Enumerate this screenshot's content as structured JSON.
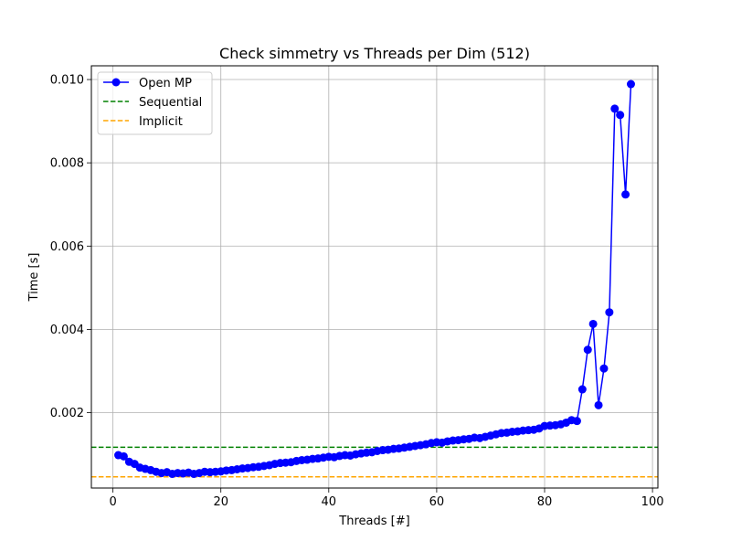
{
  "chart_data": {
    "type": "line",
    "title": "Check simmetry vs Threads per Dim (512)",
    "xlabel": "Threads [#]",
    "ylabel": "Time [s]",
    "xlim": [
      -4,
      101
    ],
    "ylim": [
      0.00019,
      0.01033
    ],
    "xticks": [
      0,
      20,
      40,
      60,
      80,
      100
    ],
    "xtick_labels": [
      "0",
      "20",
      "40",
      "60",
      "80",
      "100"
    ],
    "yticks": [
      0.002,
      0.004,
      0.006,
      0.008,
      0.01
    ],
    "ytick_labels": [
      "0.002",
      "0.004",
      "0.006",
      "0.008",
      "0.010"
    ],
    "grid": true,
    "legend_position": "top-left",
    "series": [
      {
        "name": "Open MP",
        "style": "marker-line",
        "color": "#0000ff",
        "x": [
          1,
          2,
          3,
          4,
          5,
          6,
          7,
          8,
          9,
          10,
          11,
          12,
          13,
          14,
          15,
          16,
          17,
          18,
          19,
          20,
          21,
          22,
          23,
          24,
          25,
          26,
          27,
          28,
          29,
          30,
          31,
          32,
          33,
          34,
          35,
          36,
          37,
          38,
          39,
          40,
          41,
          42,
          43,
          44,
          45,
          46,
          47,
          48,
          49,
          50,
          51,
          52,
          53,
          54,
          55,
          56,
          57,
          58,
          59,
          60,
          61,
          62,
          63,
          64,
          65,
          66,
          67,
          68,
          69,
          70,
          71,
          72,
          73,
          74,
          75,
          76,
          77,
          78,
          79,
          80,
          81,
          82,
          83,
          84,
          85,
          86,
          87,
          88,
          89,
          90,
          91,
          92,
          93,
          94,
          95,
          96
        ],
        "y": [
          0.00098,
          0.00095,
          0.00082,
          0.00077,
          0.00068,
          0.00065,
          0.00062,
          0.00058,
          0.00055,
          0.00057,
          0.00053,
          0.00055,
          0.00054,
          0.00056,
          0.00053,
          0.00055,
          0.00058,
          0.00057,
          0.00058,
          0.00059,
          0.00061,
          0.00062,
          0.00064,
          0.00066,
          0.00067,
          0.00069,
          0.0007,
          0.00072,
          0.00074,
          0.00077,
          0.00079,
          0.0008,
          0.00081,
          0.00084,
          0.00086,
          0.00087,
          0.00089,
          0.0009,
          0.00092,
          0.00094,
          0.00093,
          0.00096,
          0.00098,
          0.00097,
          0.001,
          0.00102,
          0.00104,
          0.00105,
          0.00108,
          0.0011,
          0.00111,
          0.00113,
          0.00114,
          0.00116,
          0.00118,
          0.0012,
          0.00122,
          0.00124,
          0.00127,
          0.00129,
          0.00128,
          0.00131,
          0.00133,
          0.00134,
          0.00136,
          0.00137,
          0.0014,
          0.00139,
          0.00142,
          0.00145,
          0.00148,
          0.00151,
          0.00152,
          0.00154,
          0.00155,
          0.00157,
          0.00158,
          0.00159,
          0.00162,
          0.00168,
          0.00169,
          0.0017,
          0.00172,
          0.00176,
          0.00182,
          0.0018,
          0.00256,
          0.00351,
          0.00413,
          0.00218,
          0.00306,
          0.00441,
          0.0093,
          0.00915,
          0.00724,
          0.00989
        ]
      },
      {
        "name": "Sequential",
        "style": "dashed",
        "color": "#008000",
        "y": 0.00117
      },
      {
        "name": "Implicit",
        "style": "dashed",
        "color": "#ffa500",
        "y": 0.00046
      }
    ]
  }
}
